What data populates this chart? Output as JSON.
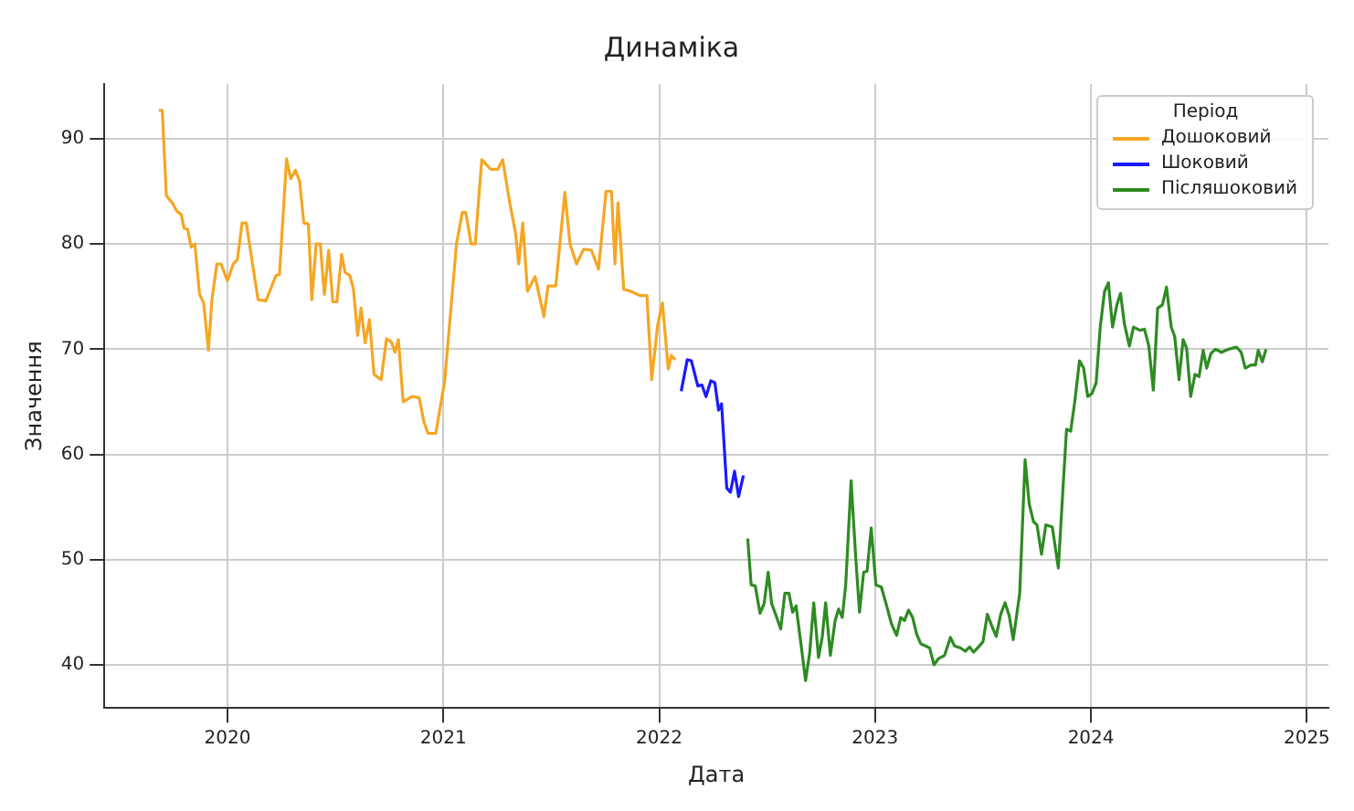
{
  "chart_data": {
    "type": "line",
    "title": "Динаміка",
    "xlabel": "Дата",
    "ylabel": "Значення",
    "legend_title": "Період",
    "legend": "top right",
    "grid": true,
    "marker": "none",
    "line_style": "solid",
    "xlim": [
      2019.43,
      2025.1
    ],
    "xticks": [
      2020,
      2021,
      2022,
      2023,
      2024,
      2025
    ],
    "ylim": [
      35.9,
      95.2
    ],
    "yticks": [
      40,
      50,
      60,
      70,
      80,
      90
    ],
    "series": [
      {
        "name": "Дошоковий",
        "color": "#f5a623",
        "x": [
          2019.682,
          2019.698,
          2019.717,
          2019.745,
          2019.766,
          2019.786,
          2019.799,
          2019.816,
          2019.832,
          2019.849,
          2019.871,
          2019.89,
          2019.912,
          2019.928,
          2019.951,
          2019.97,
          2020.0,
          2020.027,
          2020.046,
          2020.068,
          2020.087,
          2020.142,
          2020.178,
          2020.225,
          2020.241,
          2020.274,
          2020.293,
          2020.315,
          2020.334,
          2020.354,
          2020.375,
          2020.391,
          2020.411,
          2020.43,
          2020.449,
          2020.469,
          2020.488,
          2020.507,
          2020.529,
          2020.545,
          2020.567,
          2020.584,
          2020.603,
          2020.619,
          2020.638,
          2020.658,
          2020.679,
          2020.712,
          2020.737,
          2020.759,
          2020.776,
          2020.792,
          2020.814,
          2020.855,
          2020.888,
          2020.91,
          2020.929,
          2020.965,
          2021.006,
          2021.061,
          2021.088,
          2021.104,
          2021.129,
          2021.148,
          2021.178,
          2021.22,
          2021.252,
          2021.275,
          2021.308,
          2021.335,
          2021.349,
          2021.368,
          2021.39,
          2021.425,
          2021.466,
          2021.485,
          2021.521,
          2021.563,
          2021.587,
          2021.617,
          2021.65,
          2021.686,
          2021.719,
          2021.754,
          2021.779,
          2021.795,
          2021.809,
          2021.836,
          2021.869,
          2021.91,
          2021.943,
          2021.965,
          2021.993,
          2022.015,
          2022.042,
          2022.056,
          2022.075
        ],
        "values": [
          92.7,
          92.7,
          84.6,
          83.9,
          83.1,
          82.8,
          81.5,
          81.4,
          79.7,
          80,
          75.2,
          74.4,
          69.9,
          74.7,
          78.1,
          78.1,
          76.5,
          78.1,
          78.5,
          82,
          82,
          74.7,
          74.6,
          77,
          77.1,
          88.1,
          86.2,
          87,
          86,
          82,
          81.9,
          74.7,
          80,
          80,
          75.2,
          79.4,
          74.5,
          74.5,
          79,
          77.3,
          77,
          75.7,
          71.3,
          73.9,
          70.6,
          72.8,
          67.6,
          67.1,
          71,
          70.7,
          69.7,
          70.9,
          65,
          65.5,
          65.4,
          63.1,
          62,
          62,
          66.9,
          80,
          83,
          83,
          80,
          80,
          88,
          87.1,
          87.1,
          88,
          83.9,
          81,
          78.1,
          82,
          75.5,
          76.9,
          73.1,
          76,
          76,
          84.9,
          80,
          78.1,
          79.5,
          79.4,
          77.6,
          85,
          85,
          78.1,
          83.9,
          75.7,
          75.5,
          75.1,
          75.1,
          67.1,
          72.3,
          74.4,
          68.1,
          69.4,
          69
        ]
      },
      {
        "name": "Шоковий",
        "color": "#1a1aff",
        "x": [
          2022.102,
          2022.13,
          2022.149,
          2022.179,
          2022.198,
          2022.217,
          2022.239,
          2022.258,
          2022.275,
          2022.289,
          2022.313,
          2022.33,
          2022.349,
          2022.368,
          2022.39
        ],
        "values": [
          66,
          69,
          68.9,
          66.5,
          66.6,
          65.5,
          67,
          66.8,
          64.2,
          64.8,
          56.8,
          56.4,
          58.4,
          56,
          58
        ]
      },
      {
        "name": "Післяшоковий",
        "color": "#2e8b22",
        "x": [
          2022.41,
          2022.426,
          2022.445,
          2022.467,
          2022.486,
          2022.505,
          2022.521,
          2022.541,
          2022.563,
          2022.582,
          2022.601,
          2022.618,
          2022.634,
          2022.656,
          2022.678,
          2022.697,
          2022.716,
          2022.738,
          2022.755,
          2022.771,
          2022.793,
          2022.815,
          2022.831,
          2022.848,
          2022.864,
          2022.889,
          2022.911,
          2022.928,
          2022.947,
          2022.963,
          2022.982,
          2023.004,
          2023.029,
          2023.051,
          2023.076,
          2023.1,
          2023.119,
          2023.136,
          2023.155,
          2023.174,
          2023.193,
          2023.212,
          2023.234,
          2023.253,
          2023.273,
          2023.294,
          2023.322,
          2023.349,
          2023.368,
          2023.396,
          2023.418,
          2023.438,
          2023.456,
          2023.479,
          2023.5,
          2023.52,
          2023.541,
          2023.561,
          2023.582,
          2023.602,
          2023.621,
          2023.64,
          2023.67,
          2023.695,
          2023.714,
          2023.734,
          2023.75,
          2023.771,
          2023.791,
          2023.821,
          2023.849,
          2023.87,
          2023.887,
          2023.906,
          2023.925,
          2023.947,
          2023.966,
          2023.985,
          2024.005,
          2024.024,
          2024.043,
          2024.063,
          2024.081,
          2024.1,
          2024.12,
          2024.137,
          2024.155,
          2024.178,
          2024.197,
          2024.227,
          2024.248,
          2024.268,
          2024.289,
          2024.309,
          2024.331,
          2024.35,
          2024.372,
          2024.388,
          2024.408,
          2024.427,
          2024.443,
          2024.462,
          2024.482,
          2024.501,
          2024.52,
          2024.536,
          2024.556,
          2024.577,
          2024.605,
          2024.638,
          2024.674,
          2024.696,
          2024.715,
          2024.742,
          2024.762,
          2024.775,
          2024.794,
          2024.811
        ],
        "values": [
          52,
          47.6,
          47.5,
          44.9,
          45.8,
          48.8,
          45.8,
          44.7,
          43.4,
          46.8,
          46.8,
          45,
          45.6,
          42.1,
          38.5,
          41.1,
          45.9,
          40.7,
          42.6,
          45.9,
          40.9,
          44.2,
          45.3,
          44.5,
          47.6,
          57.5,
          50,
          45,
          48.8,
          48.9,
          53,
          47.6,
          47.4,
          45.8,
          43.9,
          42.8,
          44.5,
          44.2,
          45.2,
          44.5,
          42.9,
          42,
          41.8,
          41.6,
          40,
          40.6,
          40.9,
          42.6,
          41.8,
          41.6,
          41.3,
          41.7,
          41.2,
          41.7,
          42.2,
          44.8,
          43.7,
          42.7,
          44.8,
          45.9,
          44.7,
          42.4,
          46.8,
          59.5,
          55.3,
          53.6,
          53.3,
          50.5,
          53.3,
          53.1,
          49.2,
          56.6,
          62.4,
          62.2,
          65,
          68.9,
          68.2,
          65.5,
          65.8,
          66.8,
          72.1,
          75.5,
          76.3,
          72.1,
          74.2,
          75.3,
          72.4,
          70.3,
          72.1,
          71.8,
          71.9,
          70.3,
          66.1,
          73.9,
          74.2,
          75.9,
          72.1,
          71.2,
          67.1,
          70.9,
          70.1,
          65.5,
          67.6,
          67.4,
          69.9,
          68.2,
          69.6,
          70,
          69.7,
          70,
          70.2,
          69.7,
          68.2,
          68.5,
          68.5,
          69.9,
          68.8,
          70
        ]
      }
    ]
  }
}
